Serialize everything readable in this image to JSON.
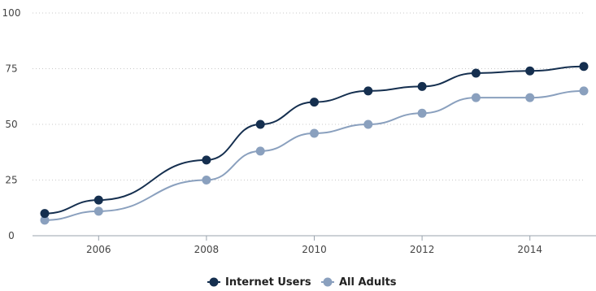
{
  "chart_data": {
    "type": "line",
    "x": [
      2005,
      2006,
      2008,
      2009,
      2010,
      2011,
      2012,
      2013,
      2014,
      2015
    ],
    "series": [
      {
        "name": "Internet Users",
        "color": "#152f4f",
        "values": [
          10,
          16,
          34,
          50,
          60,
          65,
          67,
          73,
          74,
          76
        ]
      },
      {
        "name": "All Adults",
        "color": "#8aa0be",
        "values": [
          7,
          11,
          25,
          38,
          46,
          50,
          55,
          62,
          62,
          65
        ]
      }
    ],
    "xlim": [
      2005,
      2015
    ],
    "ylim": [
      0,
      100
    ],
    "x_ticks": [
      "2006",
      "2008",
      "2010",
      "2012",
      "2014"
    ],
    "y_ticks": [
      "0",
      "25",
      "50",
      "75",
      "100"
    ],
    "grid": true,
    "legend_position": "bottom"
  }
}
